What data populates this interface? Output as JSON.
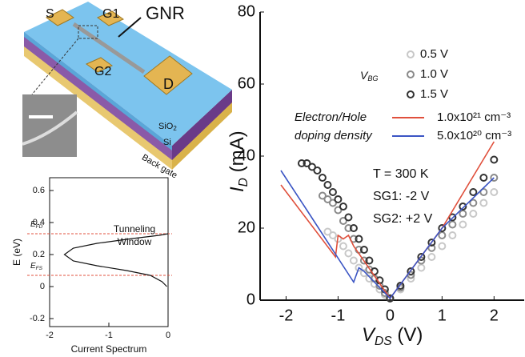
{
  "diagram": {
    "labels": {
      "s": "S",
      "g1": "G1",
      "gnr": "GNR",
      "g2": "G2",
      "d": "D",
      "sio": "SiO",
      "sio_sub": "2",
      "si": "Si",
      "back_gate": "Back gate"
    }
  },
  "chart_data": [
    {
      "type": "line",
      "xlabel": "Current Spectrum",
      "ylabel": "E (eV)",
      "xlim": [
        -2,
        0
      ],
      "ylim": [
        -0.25,
        0.68
      ],
      "xticks": [
        -2,
        -1,
        0
      ],
      "yticks": [
        -0.2,
        0,
        0.2,
        0.4,
        0.6
      ],
      "annotation": [
        "Tunneling",
        "Window"
      ],
      "hlines": [
        {
          "symbol": "E",
          "sub": "FD",
          "value": 0.33,
          "color": "#e0503c"
        },
        {
          "symbol": "E",
          "sub": "FS",
          "value": 0.07,
          "color": "#e0503c"
        }
      ],
      "series": [
        {
          "color": "#111",
          "x": [
            -0.02,
            -0.1,
            -0.3,
            -0.7,
            -1.2,
            -1.6,
            -1.75,
            -1.6,
            -1.2,
            -0.6,
            -0.15,
            0
          ],
          "values": [
            0,
            0.03,
            0.07,
            0.1,
            0.13,
            0.16,
            0.2,
            0.24,
            0.27,
            0.3,
            0.32,
            0.33
          ]
        }
      ]
    },
    {
      "type": "scatter",
      "xlabel": {
        "symbol": "V",
        "sub": "DS",
        "unit": " (V)"
      },
      "ylabel": {
        "symbol": "I",
        "sub": "D",
        "unit": " (mA)"
      },
      "xlim": [
        -2.5,
        2.58
      ],
      "ylim": [
        0,
        80
      ],
      "xticks": [
        -2,
        -1,
        0,
        1,
        2
      ],
      "yticks": [
        0,
        20,
        40,
        60,
        80
      ],
      "legend_title": {
        "symbol": "V",
        "sub": "BG"
      },
      "line_legend_title": [
        "Electron/Hole",
        "doping density"
      ],
      "annotations": [
        "T = 300 K",
        "SG1: -2 V",
        "SG2: +2 V"
      ],
      "series": [
        {
          "name": "0.5 V",
          "kind": "scatter",
          "color": "#c8c8c8",
          "x": [
            -1.2,
            -1.1,
            -1,
            -0.9,
            -0.8,
            -0.7,
            -0.6,
            -0.5,
            -0.4,
            -0.3,
            -0.2,
            -0.1,
            0,
            0.2,
            0.4,
            0.6,
            0.8,
            1,
            1.2,
            1.4,
            1.6,
            1.8,
            2
          ],
          "values": [
            19,
            18,
            17,
            15,
            13,
            11,
            9,
            7.5,
            6,
            4.5,
            3,
            1.5,
            0.5,
            3,
            6,
            9,
            12,
            15,
            18,
            21,
            24,
            27,
            30
          ]
        },
        {
          "name": "1.0 V",
          "kind": "scatter",
          "color": "#8a8a8a",
          "x": [
            -1.3,
            -1.2,
            -1.1,
            -1,
            -0.9,
            -0.8,
            -0.7,
            -0.6,
            -0.5,
            -0.4,
            -0.3,
            -0.2,
            -0.1,
            0,
            0.2,
            0.4,
            0.6,
            0.8,
            1,
            1.2,
            1.4,
            1.6,
            1.8,
            2
          ],
          "values": [
            29,
            28,
            27,
            25,
            22,
            20,
            17,
            14,
            11,
            8.5,
            6,
            4,
            2,
            0.5,
            3.5,
            7,
            11,
            14.5,
            18,
            21,
            24,
            27,
            30,
            34
          ]
        },
        {
          "name": "1.5 V",
          "kind": "scatter",
          "color": "#333333",
          "x": [
            -1.7,
            -1.6,
            -1.5,
            -1.4,
            -1.3,
            -1.2,
            -1.1,
            -1,
            -0.9,
            -0.8,
            -0.7,
            -0.6,
            -0.5,
            -0.4,
            -0.3,
            -0.2,
            -0.1,
            0,
            0.2,
            0.4,
            0.6,
            0.8,
            1,
            1.2,
            1.4,
            1.6,
            1.8,
            2
          ],
          "values": [
            38,
            38,
            37,
            36,
            34,
            32,
            30,
            28,
            26,
            23,
            20,
            17,
            14,
            11,
            8,
            5.5,
            3,
            0.5,
            4,
            8,
            12,
            16,
            20,
            23,
            26,
            30,
            34,
            39
          ]
        },
        {
          "name": "1.0x10²¹ cm⁻³",
          "kind": "line",
          "color": "#e0503c",
          "x": [
            -2.1,
            -1.05,
            -1,
            -0.9,
            -0.8,
            -0.7,
            0,
            1,
            2
          ],
          "values": [
            32,
            12,
            18,
            17,
            18,
            15,
            0.5,
            20,
            44
          ]
        },
        {
          "name": "5.0x10²⁰ cm⁻³",
          "kind": "line",
          "color": "#3b55c4",
          "x": [
            -2.1,
            -1.6,
            -0.7,
            -0.6,
            -0.5,
            0,
            1,
            2
          ],
          "values": [
            36,
            25,
            5,
            9,
            8,
            0.5,
            20,
            34
          ]
        }
      ]
    }
  ]
}
